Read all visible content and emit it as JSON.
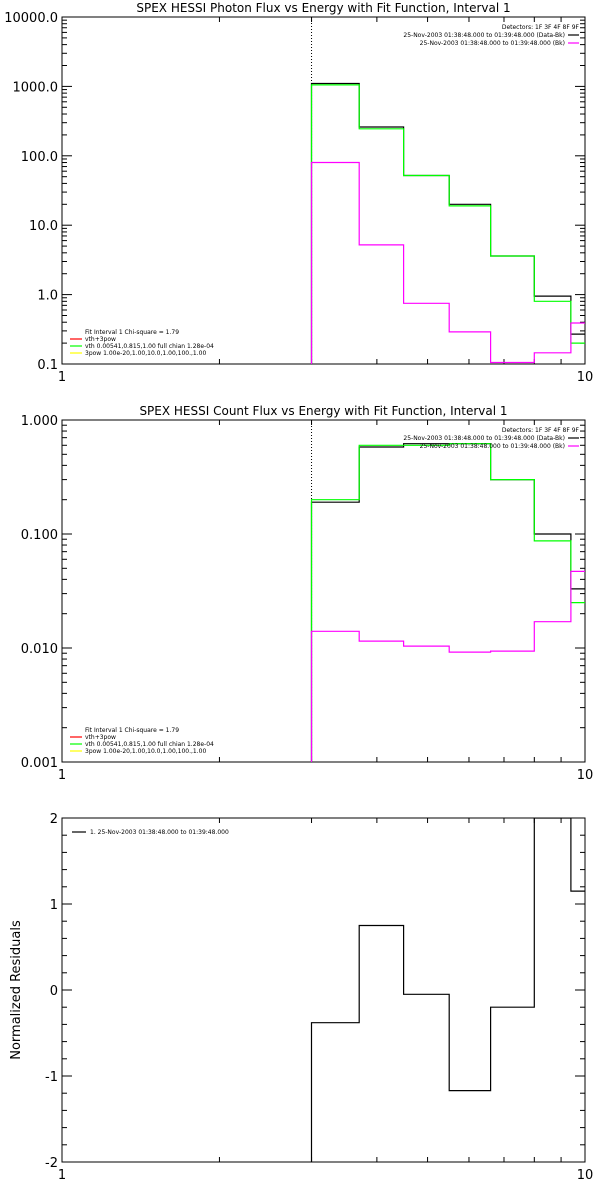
{
  "chart_data": [
    {
      "type": "line",
      "title": "SPEX HESSI Photon Flux vs Energy with Fit Function, Interval 1",
      "xscale": "log",
      "yscale": "log",
      "xlim": [
        1,
        10
      ],
      "ylim": [
        0.1,
        10000
      ],
      "x_ticks": [
        "1",
        "10"
      ],
      "y_ticks": [
        "0.1",
        "1.0",
        "10.0",
        "100.0",
        "1000.0",
        "10000.0"
      ],
      "vline_x": 3.0,
      "detectors_label": "Detectors: 1F 3F 4F 8F 9F",
      "legend_right": [
        {
          "text": "25-Nov-2003 01:38:48.000 to 01:39:48.000 (Data-Bk)",
          "color": "#000000"
        },
        {
          "text": "25-Nov-2003 01:38:48.000 to 01:39:48.000 (Bk)",
          "color": "#ff00ff"
        }
      ],
      "fit_lines": [
        {
          "text": "Fit Interval 1    Chi-square = 1.79",
          "color": ""
        },
        {
          "text": "vth+3pow",
          "color": "#ff0000"
        },
        {
          "text": "vth 0.00541,0.815,1.00   full chian 1.28e-04",
          "color": "#00ff00"
        },
        {
          "text": "3pow 1.00e-20,1.00,10.0,1.00,100.,1.00",
          "color": "#ffff00"
        }
      ],
      "series": [
        {
          "color": "#000000",
          "edges": [
            3.0,
            3.7,
            4.5,
            5.5,
            6.6,
            8.0,
            9.4,
            10
          ],
          "values": [
            1100,
            260,
            52,
            20,
            3.6,
            0.95,
            0.27
          ]
        },
        {
          "color": "#00ff00",
          "edges": [
            3.0,
            3.7,
            4.5,
            5.5,
            6.6,
            8.0,
            9.4,
            10
          ],
          "values": [
            1050,
            245,
            52,
            19,
            3.6,
            0.8,
            0.2
          ]
        },
        {
          "color": "#ff00ff",
          "edges": [
            3.0,
            3.7,
            4.5,
            5.5,
            6.6,
            8.0,
            9.4,
            10
          ],
          "values": [
            80,
            5.2,
            0.75,
            0.29,
            0.105,
            0.145,
            0.39
          ]
        }
      ]
    },
    {
      "type": "line",
      "title": "SPEX HESSI Count Flux vs Energy with Fit Function, Interval 1",
      "xscale": "log",
      "yscale": "log",
      "xlim": [
        1,
        10
      ],
      "ylim": [
        0.001,
        1.0
      ],
      "x_ticks": [
        "1",
        "10"
      ],
      "y_ticks": [
        "0.001",
        "0.010",
        "0.100",
        "1.000"
      ],
      "vline_x": 3.0,
      "detectors_label": "Detectors: 1F 3F 4F 8F 9F",
      "legend_right": [
        {
          "text": "25-Nov-2003 01:38:48.000 to 01:39:48.000 (Data-Bk)",
          "color": "#000000"
        },
        {
          "text": "25-Nov-2003 01:38:48.000 to 01:39:48.000 (Bk)",
          "color": "#ff00ff"
        }
      ],
      "fit_lines": [
        {
          "text": "Fit Interval 1    Chi-square = 1.79",
          "color": ""
        },
        {
          "text": "vth+3pow",
          "color": "#ff0000"
        },
        {
          "text": "vth 0.00541,0.815,1.00   full chian 1.28e-04",
          "color": "#00ff00"
        },
        {
          "text": "3pow 1.00e-20,1.00,10.0,1.00,100.,1.00",
          "color": "#ffff00"
        }
      ],
      "series": [
        {
          "color": "#000000",
          "edges": [
            3.0,
            3.7,
            4.5,
            5.5,
            6.6,
            8.0,
            9.4,
            10
          ],
          "values": [
            0.19,
            0.58,
            0.62,
            0.62,
            0.3,
            0.1,
            0.033
          ]
        },
        {
          "color": "#00ff00",
          "edges": [
            3.0,
            3.7,
            4.5,
            5.5,
            6.6,
            8.0,
            9.4,
            10
          ],
          "values": [
            0.2,
            0.6,
            0.6,
            0.62,
            0.3,
            0.087,
            0.025
          ]
        },
        {
          "color": "#ff00ff",
          "edges": [
            3.0,
            3.7,
            4.5,
            5.5,
            6.6,
            8.0,
            9.4,
            10
          ],
          "values": [
            0.014,
            0.0115,
            0.0104,
            0.0092,
            0.0094,
            0.017,
            0.047
          ]
        }
      ]
    },
    {
      "type": "line",
      "title": "",
      "xscale": "log",
      "yscale": "linear",
      "xlim": [
        1,
        10
      ],
      "ylim": [
        -2,
        2
      ],
      "x_ticks": [
        "1",
        "10"
      ],
      "y_ticks": [
        "-2",
        "-1",
        "0",
        "1",
        "2"
      ],
      "ylabel": "Normalized Residuals",
      "legend_right": [],
      "fit_lines": [],
      "legend_left": {
        "text": "1. 25-Nov-2003 01:38:48.000 to 01:39:48.000",
        "color": "#000000"
      },
      "series": [
        {
          "color": "#000000",
          "edges": [
            3.0,
            3.7,
            4.5,
            5.5,
            6.6,
            8.0,
            9.4,
            10
          ],
          "values": [
            -0.38,
            0.75,
            -0.05,
            -1.17,
            -0.2,
            2.0,
            1.15
          ]
        }
      ]
    }
  ]
}
